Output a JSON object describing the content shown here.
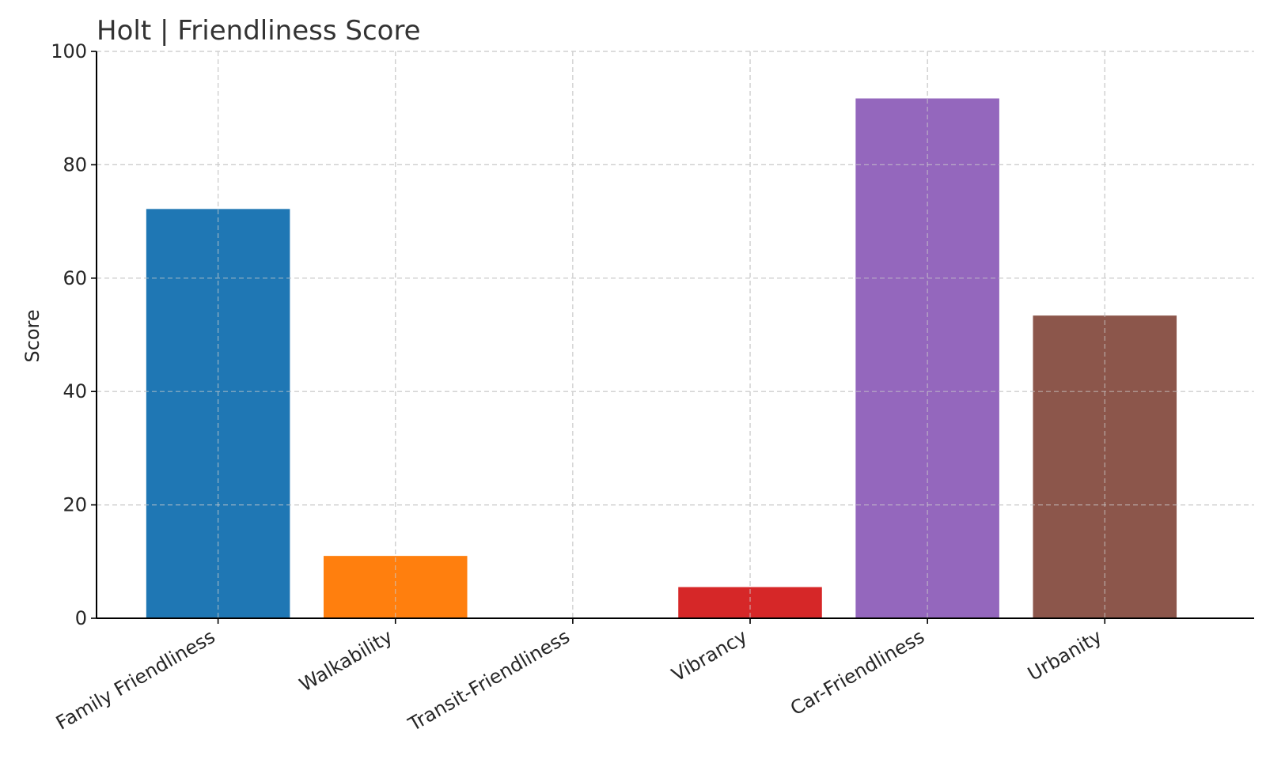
{
  "chart_data": {
    "type": "bar",
    "title": "Holt |  Friendliness Score",
    "xlabel": "",
    "ylabel": "Score",
    "categories": [
      "Family Friendliness",
      "Walkability",
      "Transit-Friendliness",
      "Vibrancy",
      "Car-Friendliness",
      "Urbanity"
    ],
    "values": [
      72.2,
      11.0,
      0,
      5.5,
      91.7,
      53.4
    ],
    "colors": [
      "#1f77b4",
      "#ff7f0e",
      "#2ca02c",
      "#d62728",
      "#9467bd",
      "#8c564b"
    ],
    "ylim": [
      0,
      100
    ],
    "yticks": [
      0,
      20,
      40,
      60,
      80,
      100
    ],
    "grid": true,
    "x_tick_rotation": 30
  }
}
